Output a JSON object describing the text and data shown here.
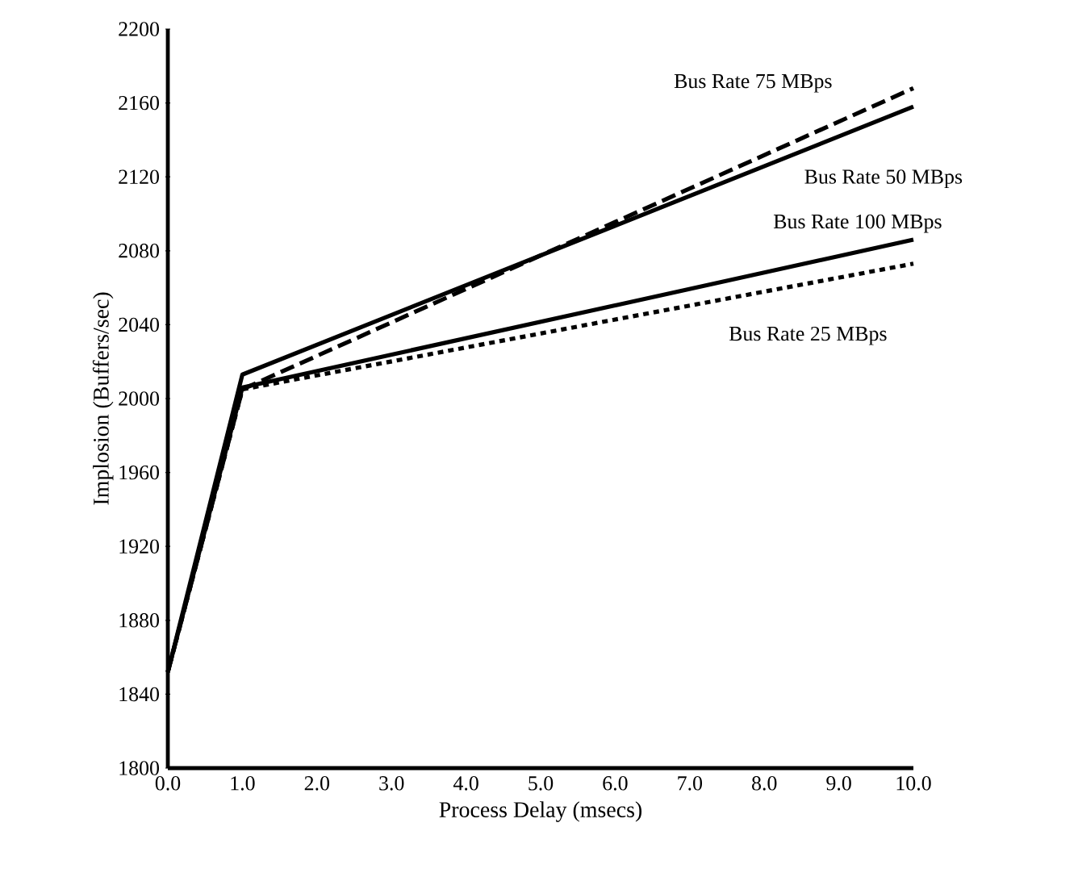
{
  "chart_data": {
    "type": "line",
    "xlabel": "Process Delay (msecs)",
    "ylabel": "Implosion (Buffers/sec)",
    "x": [
      0,
      1,
      10
    ],
    "series": [
      {
        "name": "Bus Rate 75 MBps",
        "color": "#000000",
        "line_style": "dashed",
        "values": [
          1852,
          2005,
          2168
        ]
      },
      {
        "name": "Bus Rate 50 MBps",
        "color": "#000000",
        "line_style": "solid",
        "values": [
          1852,
          2013,
          2158
        ]
      },
      {
        "name": "Bus Rate 100 MBps",
        "color": "#000000",
        "line_style": "solid",
        "values": [
          1852,
          2006,
          2086
        ]
      },
      {
        "name": "Bus Rate 25 MBps",
        "color": "#000000",
        "line_style": "dotted",
        "values": [
          1852,
          2005,
          2073
        ]
      }
    ],
    "xlim": [
      0,
      10
    ],
    "xticks": [
      {
        "value": 0,
        "label": "0.0"
      },
      {
        "value": 1,
        "label": "1.0"
      },
      {
        "value": 2,
        "label": "2.0"
      },
      {
        "value": 3,
        "label": "3.0"
      },
      {
        "value": 4,
        "label": "4.0"
      },
      {
        "value": 5,
        "label": "5.0"
      },
      {
        "value": 6,
        "label": "6.0"
      },
      {
        "value": 7,
        "label": "7.0"
      },
      {
        "value": 8,
        "label": "8.0"
      },
      {
        "value": 9,
        "label": "9.0"
      },
      {
        "value": 10,
        "label": "10.0"
      }
    ],
    "ylim": [
      1800,
      2200
    ],
    "yticks": [
      1800,
      1840,
      1880,
      1920,
      1960,
      2000,
      2040,
      2080,
      2120,
      2160,
      2200
    ],
    "grid": false,
    "legend": false
  }
}
